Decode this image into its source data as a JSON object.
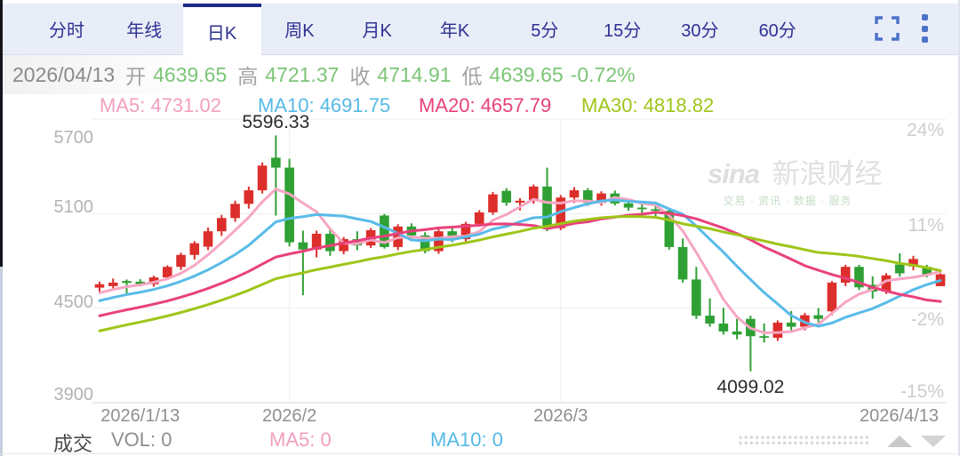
{
  "tabs": {
    "items": [
      "分时",
      "年线",
      "日K",
      "周K",
      "月K",
      "年K",
      "5分",
      "15分",
      "30分",
      "60分"
    ],
    "names": [
      "tab-time-share",
      "tab-year-line",
      "tab-daily-k",
      "tab-weekly-k",
      "tab-monthly-k",
      "tab-yearly-k",
      "tab-5min",
      "tab-15min",
      "tab-30min",
      "tab-60min"
    ],
    "active_index": 2
  },
  "icons": {
    "fullscreen": "corner-brackets",
    "more": "vertical-dots",
    "pane_up": "triangle-up",
    "pane_down": "triangle-down"
  },
  "info": {
    "date": "2026/04/13",
    "open_label": "开",
    "open": "4639.65",
    "high_label": "高",
    "high": "4721.37",
    "close_label": "收",
    "close": "4714.91",
    "low_label": "低",
    "low": "4639.65",
    "change": "-0.72%",
    "value_color": "#7cc576"
  },
  "ma_legend": [
    {
      "label": "MA5: 4731.02",
      "color": "#f29fc0"
    },
    {
      "label": "MA10: 4691.75",
      "color": "#55b9e5"
    },
    {
      "label": "MA20: 4657.79",
      "color": "#e8417c"
    },
    {
      "label": "MA30: 4818.82",
      "color": "#9fc519"
    }
  ],
  "watermark": {
    "logo": "sina",
    "name": "新浪财经",
    "tagline": "交易 · 资讯 · 数据 · 服务"
  },
  "volume_pane": {
    "title": "成交",
    "vol": "VOL: 0",
    "ma5": "MA5: 0",
    "ma10": "MA10: 0",
    "ma5_color": "#f29fc0",
    "ma10_color": "#55b9e5"
  },
  "chart_data": {
    "type": "candlestick",
    "up_color": "#dc2e2a",
    "down_color": "#2fa033",
    "grid_color": "#ededed",
    "axis_color": "#e2e2e2",
    "ylim": [
      3900,
      5700
    ],
    "y_axis_left_labels": [
      "5700",
      "5100",
      "4500",
      "3900"
    ],
    "y_axis_left_values": [
      5700,
      5100,
      4500,
      3900
    ],
    "y_axis_right_labels": [
      "24%",
      "11%",
      "-2%",
      "-15%"
    ],
    "x_ticks": [
      {
        "label": "2026/1/13",
        "index": 3,
        "gridline": false,
        "align": "center"
      },
      {
        "label": "2026/2",
        "index": 14,
        "gridline": true,
        "align": "center"
      },
      {
        "label": "2026/3",
        "index": 34,
        "gridline": true,
        "align": "center"
      },
      {
        "label": "2026/4/13",
        "index": 62,
        "gridline": false,
        "align": "right"
      }
    ],
    "annotations": [
      {
        "text": "5596.33",
        "index": 13,
        "type": "high"
      },
      {
        "text": "4099.02",
        "index": 48,
        "type": "low"
      }
    ],
    "ma_lines": [
      {
        "name": "MA5",
        "window": 5,
        "color": "#f7a6c3"
      },
      {
        "name": "MA10",
        "window": 10,
        "color": "#58bbe8"
      },
      {
        "name": "MA20",
        "window": 20,
        "color": "#e8417c"
      },
      {
        "name": "MA30",
        "window": 30,
        "color": "#9fc519"
      }
    ],
    "candles": [
      [
        4630,
        4668,
        4605,
        4652
      ],
      [
        4640,
        4688,
        4618,
        4662
      ],
      [
        4672,
        4682,
        4580,
        4660
      ],
      [
        4668,
        4684,
        4638,
        4652
      ],
      [
        4652,
        4706,
        4636,
        4695
      ],
      [
        4695,
        4772,
        4678,
        4762
      ],
      [
        4762,
        4852,
        4742,
        4838
      ],
      [
        4838,
        4926,
        4808,
        4912
      ],
      [
        4890,
        5012,
        4868,
        4988
      ],
      [
        4988,
        5092,
        4958,
        5072
      ],
      [
        5072,
        5182,
        5048,
        5162
      ],
      [
        5162,
        5272,
        5132,
        5248
      ],
      [
        5248,
        5425,
        5228,
        5405
      ],
      [
        5455,
        5596.33,
        5088,
        5392
      ],
      [
        5392,
        5448,
        4892,
        4918
      ],
      [
        4918,
        4992,
        4582,
        4872
      ],
      [
        4872,
        4992,
        4822,
        4972
      ],
      [
        4972,
        5002,
        4832,
        4862
      ],
      [
        4862,
        4952,
        4842,
        4938
      ],
      [
        4938,
        4988,
        4868,
        4898
      ],
      [
        4898,
        5008,
        4882,
        4995
      ],
      [
        5088,
        5098,
        4878,
        4888
      ],
      [
        4888,
        5032,
        4868,
        5018
      ],
      [
        5018,
        5038,
        4942,
        4962
      ],
      [
        4962,
        4982,
        4848,
        4862
      ],
      [
        4862,
        5002,
        4845,
        4988
      ],
      [
        4988,
        5008,
        4918,
        4938
      ],
      [
        4938,
        5048,
        4922,
        5035
      ],
      [
        5035,
        5122,
        5018,
        5108
      ],
      [
        5108,
        5238,
        5092,
        5222
      ],
      [
        5245,
        5262,
        5150,
        5170
      ],
      [
        5170,
        5198,
        5120,
        5182
      ],
      [
        5182,
        5285,
        5162,
        5272
      ],
      [
        5272,
        5392,
        4988,
        5008
      ],
      [
        5008,
        5218,
        4995,
        5202
      ],
      [
        5202,
        5268,
        5168,
        5248
      ],
      [
        5248,
        5262,
        5150,
        5168
      ],
      [
        5168,
        5242,
        5150,
        5228
      ],
      [
        5228,
        5246,
        5152,
        5165
      ],
      [
        5165,
        5192,
        5118,
        5138
      ],
      [
        5138,
        5162,
        5088,
        5128
      ],
      [
        5128,
        5152,
        5082,
        5118
      ],
      [
        5118,
        5135,
        4872,
        4888
      ],
      [
        4888,
        4942,
        4662,
        4682
      ],
      [
        4682,
        4762,
        4432,
        4452
      ],
      [
        4452,
        4562,
        4382,
        4402
      ],
      [
        4402,
        4502,
        4332,
        4352
      ],
      [
        4352,
        4432,
        4302,
        4332
      ],
      [
        4432,
        4452,
        4099.02,
        4322
      ],
      [
        4322,
        4402,
        4282,
        4312
      ],
      [
        4312,
        4422,
        4292,
        4408
      ],
      [
        4408,
        4482,
        4352,
        4382
      ],
      [
        4382,
        4470,
        4360,
        4455
      ],
      [
        4455,
        4500,
        4410,
        4432
      ],
      [
        4480,
        4672,
        4455,
        4662
      ],
      [
        4662,
        4775,
        4640,
        4762
      ],
      [
        4762,
        4775,
        4615,
        4632
      ],
      [
        4648,
        4702,
        4560,
        4605
      ],
      [
        4605,
        4722,
        4590,
        4708
      ],
      [
        4777,
        4848,
        4700,
        4721
      ],
      [
        4765,
        4832,
        4740,
        4812
      ],
      [
        4762,
        4775,
        4695,
        4708
      ],
      [
        4639.65,
        4721.37,
        4639.65,
        4714.91
      ]
    ]
  }
}
